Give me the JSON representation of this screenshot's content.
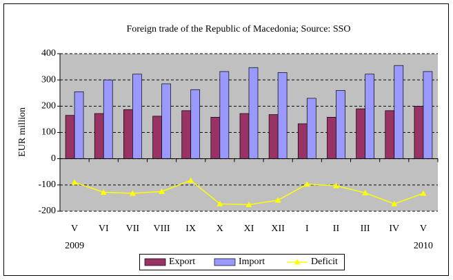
{
  "chart_data": {
    "type": "bar",
    "title": "Foreign trade of the Republic of Macedonia; Source: SSO",
    "y_label": "EUR million",
    "categories": [
      "V",
      "VI",
      "VII",
      "VIII",
      "IX",
      "X",
      "XI",
      "XII",
      "I",
      "II",
      "III",
      "IV",
      "V"
    ],
    "annotations": [
      "2009",
      "2010"
    ],
    "series": [
      {
        "name": "Export",
        "type": "bar",
        "color": "#993366",
        "values": [
          165,
          172,
          187,
          162,
          183,
          158,
          172,
          168,
          133,
          158,
          190,
          183,
          200
        ]
      },
      {
        "name": "Import",
        "type": "bar",
        "color": "#9999ff",
        "values": [
          255,
          300,
          322,
          285,
          263,
          332,
          347,
          328,
          230,
          260,
          322,
          355,
          332
        ]
      },
      {
        "name": "Deficit",
        "type": "line",
        "color": "#ffff00",
        "values": [
          -90,
          -128,
          -132,
          -125,
          -83,
          -172,
          -175,
          -158,
          -97,
          -103,
          -130,
          -172,
          -132
        ]
      }
    ],
    "ylim": [
      -200,
      400
    ],
    "yticks": [
      -200,
      -100,
      0,
      100,
      200,
      300,
      400
    ],
    "grid": true,
    "legend": "bottom"
  }
}
